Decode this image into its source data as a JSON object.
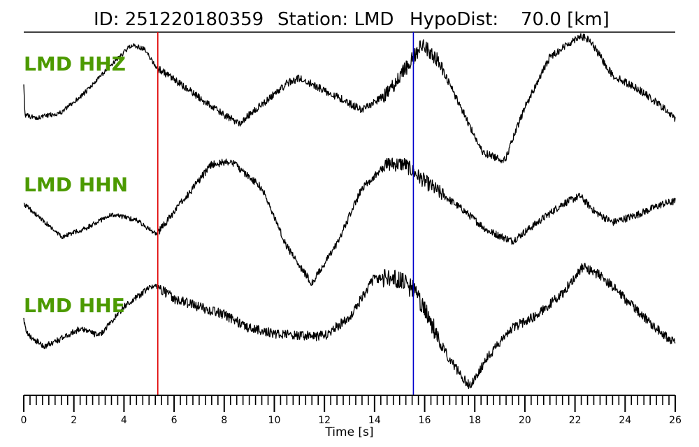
{
  "title": {
    "id_text": "ID: 251220180359",
    "station_text": "Station: LMD",
    "hypo_label": "HypoDist:",
    "hypo_value": "70.0 [km]"
  },
  "colors": {
    "trace": "#000000",
    "channel_label": "#4c9a00",
    "p_pick": "#e00000",
    "s_pick": "#0000cc"
  },
  "chart_data": {
    "type": "line",
    "title": "ID: 251220180359   Station: LMD   HypoDist:    70.0 [km]",
    "xlabel": "Time [s]",
    "ylabel": "",
    "xlim": [
      0,
      26
    ],
    "x_ticks": [
      "0",
      "2",
      "4",
      "6",
      "8",
      "10",
      "12",
      "14",
      "16",
      "18",
      "20",
      "22",
      "24",
      "26"
    ],
    "minor_tick_step": 0.25,
    "grid": false,
    "legend": "none",
    "picks": [
      {
        "time": 5.35,
        "color": "#e00000"
      },
      {
        "time": 15.55,
        "color": "#0000cc"
      }
    ],
    "series": [
      {
        "name": "LMD HHZ",
        "noise": 0.35,
        "t": [
          0,
          0.05,
          0.5,
          1.5,
          2.5,
          3.5,
          4.3,
          4.8,
          5.3,
          6.5,
          8.0,
          8.6,
          9.5,
          10.5,
          11.0,
          12.5,
          13.5,
          14.5,
          15.5,
          15.9,
          16.5,
          17.5,
          18.3,
          19.2,
          20.0,
          21.0,
          22.2,
          22.6,
          23.5,
          24.5,
          25.5,
          26.0
        ],
        "amp": [
          2.4,
          0.0,
          -0.2,
          0.2,
          1.8,
          3.8,
          5.3,
          5.0,
          3.6,
          2.0,
          0.0,
          -0.6,
          0.8,
          2.4,
          2.8,
          1.4,
          0.4,
          1.6,
          4.2,
          5.4,
          4.2,
          0.4,
          -2.8,
          -3.4,
          0.6,
          4.4,
          6.0,
          5.6,
          3.0,
          2.0,
          0.6,
          -0.3
        ]
      },
      {
        "name": "LMD HHN",
        "noise": 0.35,
        "t": [
          0,
          0.5,
          1.5,
          2.5,
          3.5,
          4.5,
          5.3,
          6.5,
          7.5,
          8.3,
          9.5,
          10.5,
          11.5,
          12.5,
          13.5,
          14.5,
          15.2,
          15.8,
          16.5,
          17.5,
          18.5,
          19.5,
          20.5,
          21.5,
          22.2,
          22.8,
          23.5,
          24.5,
          25.5,
          26.0
        ],
        "amp": [
          2.0,
          1.2,
          -0.5,
          0.2,
          1.2,
          0.8,
          -0.3,
          2.6,
          5.0,
          5.2,
          3.2,
          -1.2,
          -4.0,
          -1.0,
          3.2,
          5.0,
          5.0,
          4.0,
          3.0,
          1.6,
          0.0,
          -0.8,
          0.6,
          2.0,
          2.6,
          1.4,
          0.6,
          1.2,
          2.0,
          2.2
        ]
      },
      {
        "name": "LMD HHE",
        "noise": 0.45,
        "t": [
          0,
          0.1,
          0.8,
          1.5,
          2.3,
          3.0,
          4.0,
          5.0,
          5.3,
          6.0,
          7.0,
          8.0,
          9.0,
          10.0,
          11.0,
          12.0,
          13.0,
          14.0,
          15.0,
          15.6,
          16.2,
          17.0,
          17.8,
          18.5,
          19.5,
          20.5,
          21.5,
          22.3,
          23.0,
          24.0,
          25.0,
          26.0
        ],
        "amp": [
          2.2,
          1.2,
          0.2,
          0.8,
          1.6,
          1.0,
          3.2,
          4.6,
          4.8,
          3.8,
          3.2,
          2.6,
          1.6,
          1.2,
          1.0,
          1.0,
          2.4,
          5.4,
          5.2,
          4.4,
          2.2,
          -0.8,
          -2.8,
          -0.6,
          1.6,
          2.6,
          4.2,
          6.2,
          5.6,
          3.8,
          2.0,
          0.4
        ]
      }
    ]
  }
}
